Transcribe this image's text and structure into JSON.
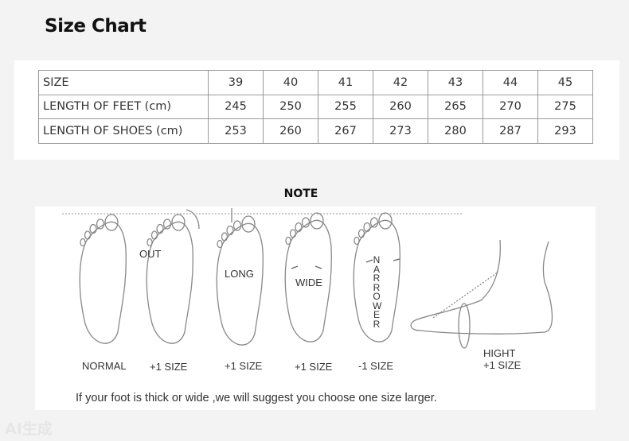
{
  "title": "Size Chart",
  "table": {
    "rows": [
      {
        "label": "SIZE",
        "values": [
          "39",
          "40",
          "41",
          "42",
          "43",
          "44",
          "45"
        ]
      },
      {
        "label": "LENGTH OF FEET (cm)",
        "values": [
          "245",
          "250",
          "255",
          "260",
          "265",
          "270",
          "275"
        ]
      },
      {
        "label": "LENGTH OF SHOES (cm)",
        "values": [
          "253",
          "260",
          "267",
          "273",
          "280",
          "287",
          "293"
        ]
      }
    ]
  },
  "note": {
    "heading": "NOTE",
    "feet": [
      {
        "inner": "",
        "caption": "NORMAL"
      },
      {
        "inner": "OUT",
        "caption": "+1 SIZE"
      },
      {
        "inner": "LONG",
        "caption": "+1 SIZE"
      },
      {
        "inner": "WIDE",
        "caption": "+1 SIZE"
      },
      {
        "inner": "NARROWER",
        "caption": "-1 SIZE"
      }
    ],
    "side": {
      "caption1": "HIGHT",
      "caption2": "+1 SIZE"
    },
    "message": "If your foot is thick or wide ,we will suggest you  choose one size larger."
  },
  "watermark": "AI生成"
}
